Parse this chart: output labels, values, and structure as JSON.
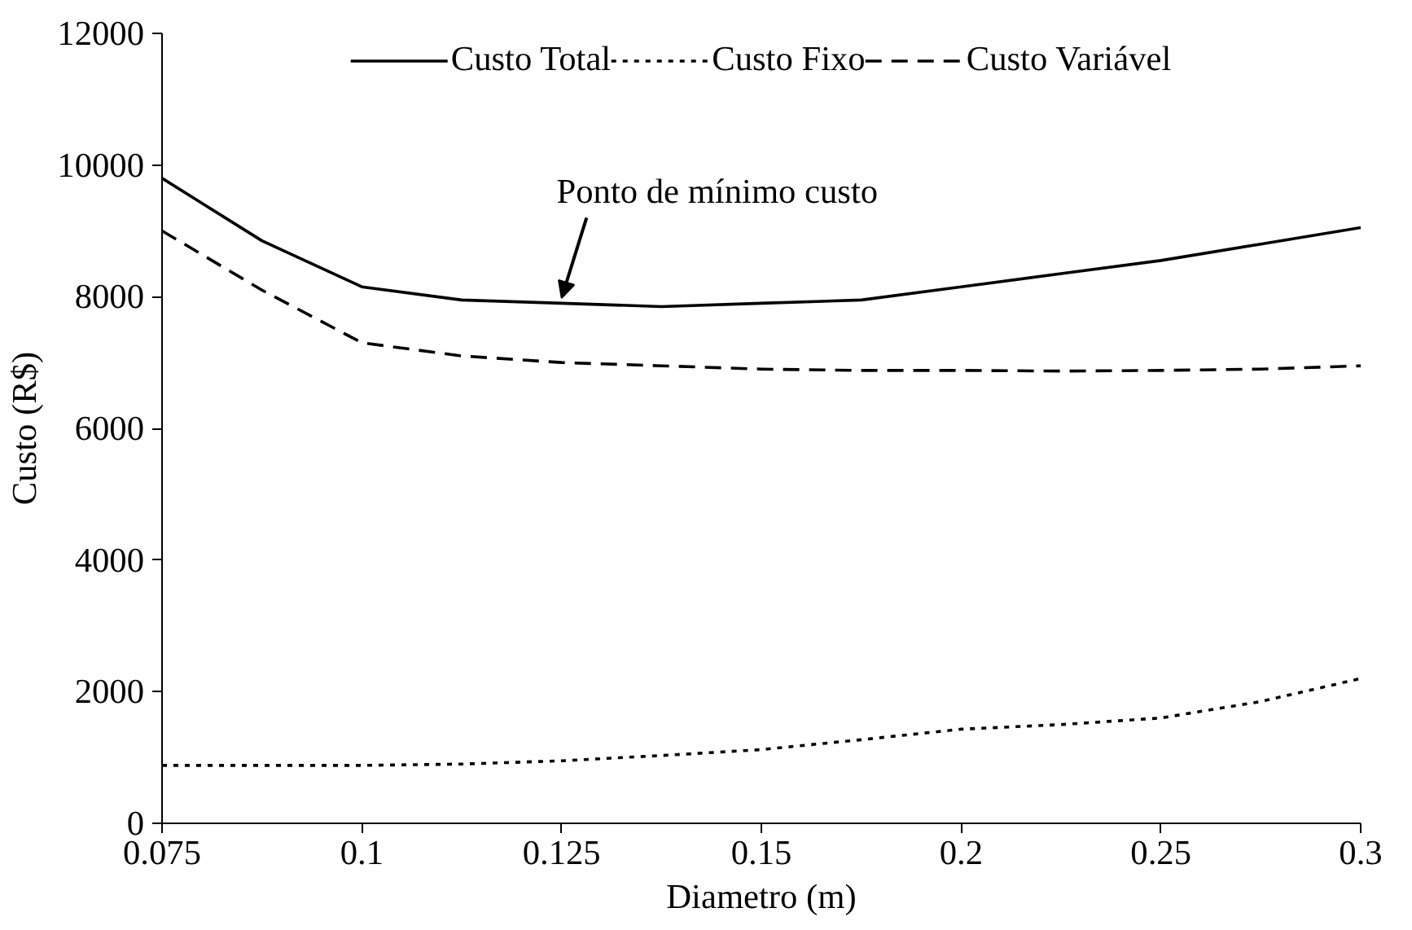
{
  "chart_data": {
    "type": "line",
    "xlabel": "Diametro (m)",
    "ylabel": "Custo (R$)",
    "categories": [
      "0.075",
      null,
      "0.1",
      null,
      "0.125",
      null,
      "0.15",
      null,
      "0.2",
      null,
      "0.25",
      null,
      "0.3"
    ],
    "series": [
      {
        "name": "Custo Total",
        "color": "#000000",
        "line_style": "solid",
        "values": [
          9800,
          8850,
          8150,
          7950,
          7900,
          7850,
          7900,
          7950,
          8150,
          8350,
          8550,
          8800,
          9050
        ]
      },
      {
        "name": "Custo Fixo",
        "color": "#000000",
        "line_style": "dotted",
        "values": [
          880,
          880,
          880,
          900,
          950,
          1030,
          1120,
          1270,
          1430,
          1500,
          1600,
          1850,
          2200
        ]
      },
      {
        "name": "Custo Variável",
        "color": "#000000",
        "line_style": "dashed",
        "values": [
          9000,
          8100,
          7300,
          7100,
          7000,
          6950,
          6900,
          6880,
          6880,
          6870,
          6880,
          6900,
          6950
        ]
      }
    ],
    "ylim": [
      0,
      12000
    ],
    "yticks": [
      0,
      2000,
      4000,
      6000,
      8000,
      10000,
      12000
    ],
    "grid": false,
    "legend": "top",
    "marker": "none",
    "annotations": [
      {
        "text": "Ponto de mínimo custo",
        "x": "0.125",
        "y": 7900
      }
    ]
  }
}
